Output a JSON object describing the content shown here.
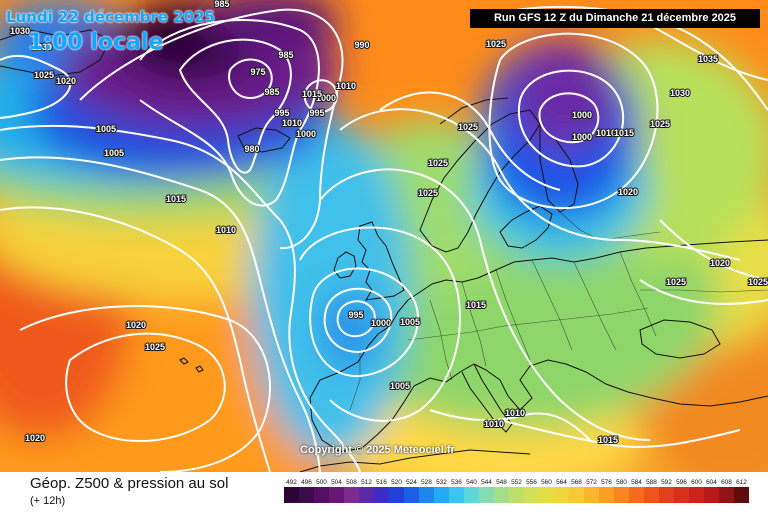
{
  "header": {
    "date_title": "Lundi 22 décembre 2025",
    "time_title": "1:00 locale",
    "run_info": "Run GFS 12 Z du Dimanche 21 décembre 2025"
  },
  "copyright": "Copyright © 2025 Meteociel.fr",
  "footer": {
    "title": "Géop. Z500 & pression au sol",
    "subtitle": "(+ 12h)"
  },
  "colors": {
    "very_low": "#3a0845",
    "low": "#7a2a9a",
    "mid_low": "#1d3fd6",
    "mid": "#2fb2e6",
    "mid_high": "#7fd36b",
    "high": "#f5d23a",
    "very_high": "#ff8c1a",
    "extreme": "#d6381c"
  },
  "scale": {
    "values": [
      "492",
      "496",
      "500",
      "504",
      "508",
      "512",
      "516",
      "520",
      "524",
      "528",
      "532",
      "536",
      "540",
      "544",
      "548",
      "552",
      "556",
      "560",
      "564",
      "568",
      "572",
      "576",
      "580",
      "584",
      "588",
      "592",
      "596",
      "600",
      "604",
      "608",
      "612"
    ],
    "colors": [
      "#2a0535",
      "#3d0a4c",
      "#520f63",
      "#6a1679",
      "#7d2a92",
      "#5a2aa8",
      "#3a2fc2",
      "#2040d6",
      "#1c5fe2",
      "#1f86ec",
      "#26a9f2",
      "#3cc4ee",
      "#5fd6d8",
      "#84dcb0",
      "#a3df86",
      "#bde06a",
      "#d2e05a",
      "#e3dd4a",
      "#f0d63e",
      "#f7c935",
      "#fab52c",
      "#fb9e25",
      "#f98620",
      "#f46d1c",
      "#ec551a",
      "#e2401a",
      "#d8301b",
      "#cc241c",
      "#b61b1b",
      "#8f1414",
      "#5e0b0b"
    ]
  },
  "contour_labels": [
    {
      "text": "985"
    },
    {
      "text": "1030"
    },
    {
      "text": "1030"
    },
    {
      "text": "1025"
    },
    {
      "text": "1020"
    },
    {
      "text": "990"
    },
    {
      "text": "985"
    },
    {
      "text": "975"
    },
    {
      "text": "985"
    },
    {
      "text": "995"
    },
    {
      "text": "1010"
    },
    {
      "text": "1000"
    },
    {
      "text": "1005"
    },
    {
      "text": "1015"
    },
    {
      "text": "1010"
    },
    {
      "text": "995"
    },
    {
      "text": "980"
    },
    {
      "text": "1005"
    },
    {
      "text": "1000"
    },
    {
      "text": "1015"
    },
    {
      "text": "1010"
    },
    {
      "text": "1025"
    },
    {
      "text": "1025"
    },
    {
      "text": "1025"
    },
    {
      "text": "1025"
    },
    {
      "text": "1035"
    },
    {
      "text": "1030"
    },
    {
      "text": "1000"
    },
    {
      "text": "1000"
    },
    {
      "text": "1010"
    },
    {
      "text": "1015"
    },
    {
      "text": "1025"
    },
    {
      "text": "1020"
    },
    {
      "text": "1020"
    },
    {
      "text": "1025"
    },
    {
      "text": "1025"
    },
    {
      "text": "1020"
    },
    {
      "text": "1025"
    },
    {
      "text": "995"
    },
    {
      "text": "1000"
    },
    {
      "text": "1005"
    },
    {
      "text": "1015"
    },
    {
      "text": "1005"
    },
    {
      "text": "1010"
    },
    {
      "text": "1010"
    },
    {
      "text": "1015"
    },
    {
      "text": "1020"
    }
  ]
}
